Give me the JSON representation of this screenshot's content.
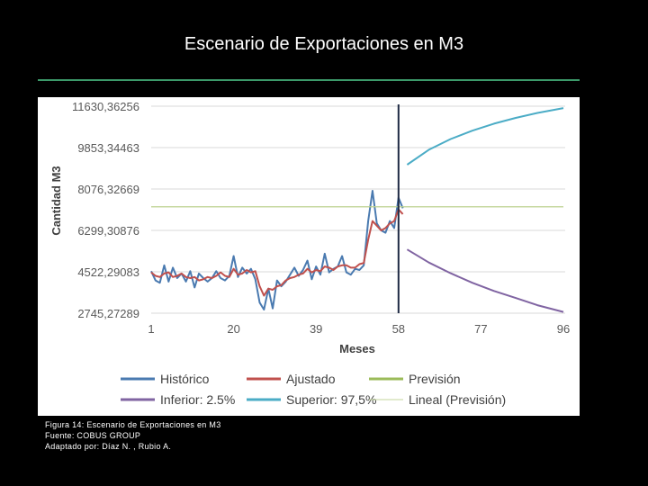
{
  "slide": {
    "title": "Escenario de Exportaciones en M3",
    "caption": [
      "Figura 14: Escenario de Exportaciones en M3",
      "Fuente:  COBUS GROUP",
      "Adaptado por: Díaz N. , Rubio  A."
    ]
  },
  "colors": {
    "background": "#000000",
    "rule": "#3c9a6a",
    "historico": "#4a7ab0",
    "ajustado": "#c0504d",
    "prevision": "#9bbb59",
    "inferior": "#8064a2",
    "superior": "#4bacc6",
    "lineal": "#c3d69b",
    "divider": "#1f2a44"
  },
  "chart_data": {
    "type": "line",
    "title": "",
    "xlabel": "Meses",
    "ylabel": "Cantidad M3",
    "xlim": [
      1,
      96
    ],
    "ylim": [
      2745.27289,
      11630.36256
    ],
    "grid": true,
    "legend_position": "bottom",
    "forecast_start": 58,
    "x_ticks": [
      "1",
      "20",
      "39",
      "58",
      "77",
      "96"
    ],
    "y_ticks": [
      "2745,27289",
      "4522,29083",
      "6299,30876",
      "8076,32669",
      "9853,34463",
      "11630,36256"
    ],
    "series": [
      {
        "name": "Histórico",
        "color": "#4a7ab0",
        "x": [
          1,
          2,
          3,
          4,
          5,
          6,
          7,
          8,
          9,
          10,
          11,
          12,
          13,
          14,
          15,
          16,
          17,
          18,
          19,
          20,
          21,
          22,
          23,
          24,
          25,
          26,
          27,
          28,
          29,
          30,
          31,
          32,
          33,
          34,
          35,
          36,
          37,
          38,
          39,
          40,
          41,
          42,
          43,
          44,
          45,
          46,
          47,
          48,
          49,
          50,
          51,
          52,
          53,
          54,
          55,
          56,
          57,
          58,
          59
        ],
        "values": [
          4550,
          4150,
          4050,
          4800,
          4100,
          4700,
          4250,
          4450,
          4100,
          4550,
          3850,
          4450,
          4250,
          4100,
          4250,
          4550,
          4250,
          4150,
          4350,
          5200,
          4300,
          4700,
          4450,
          4650,
          4200,
          3200,
          2900,
          3800,
          2950,
          4150,
          3900,
          4100,
          4400,
          4700,
          4350,
          4600,
          5000,
          4200,
          4750,
          4400,
          5300,
          4500,
          4650,
          4750,
          5200,
          4500,
          4400,
          4650,
          4600,
          4800,
          6700,
          8000,
          6600,
          6300,
          6200,
          6700,
          6400,
          7700,
          7250
        ]
      },
      {
        "name": "Ajustado",
        "color": "#c0504d",
        "x": [
          1,
          2,
          3,
          4,
          5,
          6,
          7,
          8,
          9,
          10,
          11,
          12,
          13,
          14,
          15,
          16,
          17,
          18,
          19,
          20,
          21,
          22,
          23,
          24,
          25,
          26,
          27,
          28,
          29,
          30,
          31,
          32,
          33,
          34,
          35,
          36,
          37,
          38,
          39,
          40,
          41,
          42,
          43,
          44,
          45,
          46,
          47,
          48,
          49,
          50,
          51,
          52,
          53,
          54,
          55,
          56,
          57,
          58,
          59
        ],
        "values": [
          4500,
          4350,
          4300,
          4450,
          4500,
          4300,
          4350,
          4450,
          4300,
          4250,
          4300,
          4150,
          4200,
          4300,
          4250,
          4350,
          4500,
          4350,
          4300,
          4650,
          4400,
          4450,
          4600,
          4500,
          4550,
          3900,
          3500,
          3800,
          3750,
          3900,
          3950,
          4150,
          4250,
          4300,
          4400,
          4450,
          4650,
          4500,
          4600,
          4550,
          4750,
          4700,
          4600,
          4750,
          4800,
          4800,
          4700,
          4700,
          4850,
          4900,
          5900,
          6700,
          6500,
          6300,
          6400,
          6600,
          6700,
          7200,
          7000
        ]
      },
      {
        "name": "Previsión",
        "color": "#9bbb59",
        "x": [
          1,
          96
        ],
        "values": [
          7310,
          7310
        ]
      },
      {
        "name": "Inferior: 2.5%",
        "color": "#8064a2",
        "x": [
          60,
          65,
          70,
          75,
          80,
          85,
          90,
          96
        ],
        "values": [
          5480,
          4920,
          4460,
          4050,
          3700,
          3400,
          3090,
          2800
        ]
      },
      {
        "name": "Superior: 97,5%",
        "color": "#4bacc6",
        "x": [
          60,
          65,
          70,
          75,
          80,
          85,
          90,
          96
        ],
        "values": [
          9120,
          9760,
          10220,
          10580,
          10880,
          11130,
          11340,
          11550
        ]
      },
      {
        "name": "Lineal (Previsión)",
        "color": "#c3d69b",
        "x": [
          1,
          96
        ],
        "values": [
          7310,
          7310
        ]
      }
    ]
  }
}
